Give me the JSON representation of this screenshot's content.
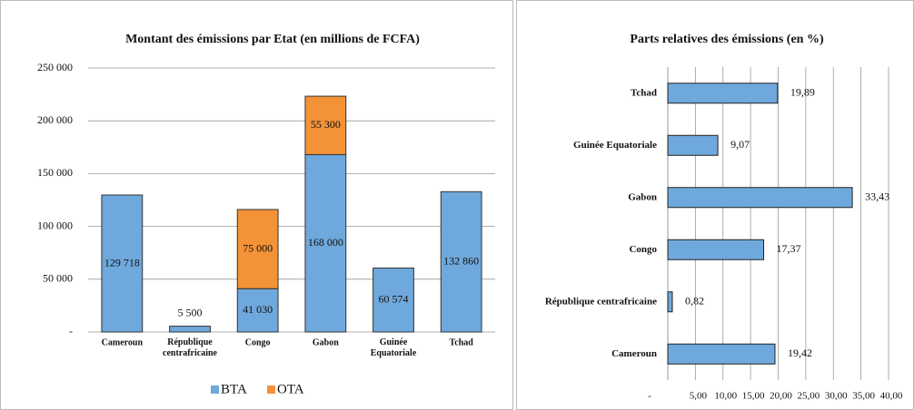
{
  "chart_data": [
    {
      "type": "bar",
      "stacked": true,
      "title": "Montant des émissions par Etat (en millions de FCFA)",
      "categories": [
        "Cameroun",
        "République centrafricaine",
        "Congo",
        "Gabon",
        "Guinée Equatoriale",
        "Tchad"
      ],
      "series": [
        {
          "name": "BTA",
          "color": "#6fa8dc",
          "values": [
            129718,
            5500,
            41030,
            168000,
            60574,
            132860
          ],
          "value_labels": [
            "129 718",
            "5 500",
            "41 030",
            "168 000",
            "60 574",
            "132 860"
          ]
        },
        {
          "name": "OTA",
          "color": "#f39237",
          "values": [
            null,
            null,
            75000,
            55300,
            null,
            null
          ],
          "value_labels": [
            null,
            null,
            "75 000",
            "55 300",
            null,
            null
          ]
        }
      ],
      "ylim": [
        0,
        250000
      ],
      "yticks": [
        {
          "value": 0,
          "label": "-"
        },
        {
          "value": 50000,
          "label": "50 000"
        },
        {
          "value": 100000,
          "label": "100 000"
        },
        {
          "value": 150000,
          "label": "150 000"
        },
        {
          "value": 200000,
          "label": "200 000"
        },
        {
          "value": 250000,
          "label": "250 000"
        }
      ],
      "grid": true,
      "legend": "bottom"
    },
    {
      "type": "barh",
      "title": "Parts relatives des émissions (en %)",
      "categories": [
        "Cameroun",
        "République centrafricaine",
        "Congo",
        "Gabon",
        "Guinée Equatoriale",
        "Tchad"
      ],
      "values": [
        19.42,
        0.82,
        17.37,
        33.43,
        9.07,
        19.89
      ],
      "value_labels": [
        "19,42",
        "0,82",
        "17,37",
        "33,43",
        "9,07",
        "19,89"
      ],
      "color": "#6fa8dc",
      "xlim": [
        0,
        40
      ],
      "xticks": [
        {
          "value": 0,
          "label": "-"
        },
        {
          "value": 5,
          "label": "5,00"
        },
        {
          "value": 10,
          "label": "10,00"
        },
        {
          "value": 15,
          "label": "15,00"
        },
        {
          "value": 20,
          "label": "20,00"
        },
        {
          "value": 25,
          "label": "25,00"
        },
        {
          "value": 30,
          "label": "30,00"
        },
        {
          "value": 35,
          "label": "35,00"
        },
        {
          "value": 40,
          "label": "40,00"
        }
      ],
      "grid": true
    }
  ]
}
